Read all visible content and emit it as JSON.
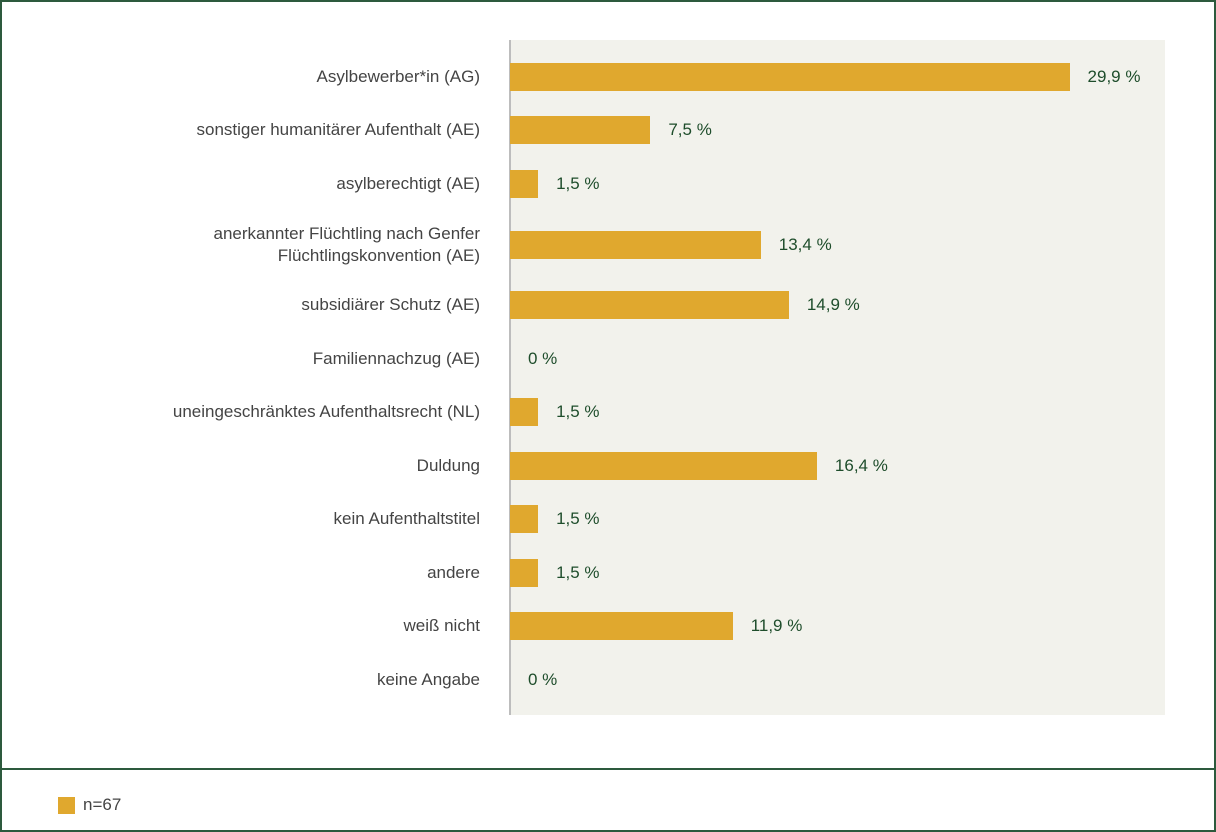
{
  "chart_data": {
    "type": "bar",
    "orientation": "horizontal",
    "categories": [
      "Asylbewerber*in (AG)",
      "sonstiger humanitärer Aufenthalt (AE)",
      "asylberechtigt (AE)",
      "anerkannter Flüchtling nach Genfer Flüchtlingskonvention (AE)",
      "subsidiärer Schutz (AE)",
      "Familiennachzug (AE)",
      "uneingeschränktes Aufenthaltsrecht (NL)",
      "Duldung",
      "kein Aufenthaltstitel",
      "andere",
      "weiß nicht",
      "keine Angabe"
    ],
    "series": [
      {
        "name": "n=67",
        "color": "#e0a82e",
        "values": [
          29.9,
          7.5,
          1.5,
          13.4,
          14.9,
          0,
          1.5,
          16.4,
          1.5,
          1.5,
          11.9,
          0
        ],
        "value_labels": [
          "29,9 %",
          "7,5 %",
          "1,5 %",
          "13,4 %",
          "14,9 %",
          "0 %",
          "1,5 %",
          "16,4 %",
          "1,5 %",
          "1,5 %",
          "11,9 %",
          "0 %"
        ]
      }
    ],
    "xlim": [
      0,
      35
    ]
  }
}
